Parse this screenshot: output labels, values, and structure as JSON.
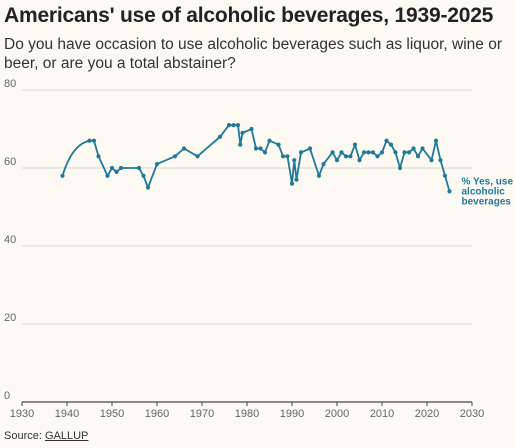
{
  "title": "Americans' use of alcoholic beverages, 1939-2025",
  "subtitle": "Do you have occasion to use alcoholic beverages such as liquor, wine or beer, or are you a total abstainer?",
  "source": {
    "prefix": "Source: ",
    "link_text": "GALLUP"
  },
  "colors": {
    "series": "#1f7a99",
    "grid": "#d8d8d8",
    "background": "#fcf8f2"
  },
  "chart_data": {
    "type": "line",
    "title": "Americans' use of alcoholic beverages, 1939-2025",
    "xlabel": "",
    "ylabel": "",
    "xlim": [
      1930,
      2030
    ],
    "ylim": [
      0,
      80
    ],
    "x_ticks": [
      1930,
      1940,
      1950,
      1960,
      1970,
      1980,
      1990,
      2000,
      2010,
      2020,
      2030
    ],
    "y_ticks": [
      0,
      20,
      40,
      60,
      80
    ],
    "grid": "horizontal",
    "series": [
      {
        "name": "% Yes, use alcoholic beverages",
        "label_lines": [
          "% Yes, use",
          "alcoholic",
          "beverages"
        ],
        "x": [
          1939,
          1945,
          1946,
          1947,
          1949,
          1950,
          1951,
          1952,
          1956,
          1957,
          1958,
          1960,
          1964,
          1966,
          1969,
          1974,
          1976,
          1977,
          1978,
          1978.5,
          1979,
          1981,
          1982,
          1983,
          1984,
          1985,
          1987,
          1988,
          1989,
          1990,
          1990.5,
          1991,
          1992,
          1994,
          1996,
          1997,
          1999,
          2000,
          2001,
          2002,
          2003,
          2004,
          2005,
          2006,
          2007,
          2008,
          2009,
          2010,
          2011,
          2012,
          2013,
          2014,
          2015,
          2016,
          2017,
          2018,
          2019,
          2021,
          2022,
          2023,
          2024,
          2025
        ],
        "y": [
          58,
          67,
          67,
          63,
          58,
          60,
          59,
          60,
          60,
          58,
          55,
          61,
          63,
          65,
          63,
          68,
          71,
          71,
          71,
          66,
          69,
          70,
          65,
          65,
          64,
          67,
          66,
          63,
          63,
          56,
          62,
          57,
          64,
          65,
          58,
          61,
          64,
          62,
          64,
          63,
          63,
          66,
          62,
          64,
          64,
          64,
          63,
          64,
          67,
          66,
          64,
          60,
          64,
          64,
          65,
          63,
          65,
          62,
          67,
          62,
          58,
          54
        ]
      }
    ]
  }
}
